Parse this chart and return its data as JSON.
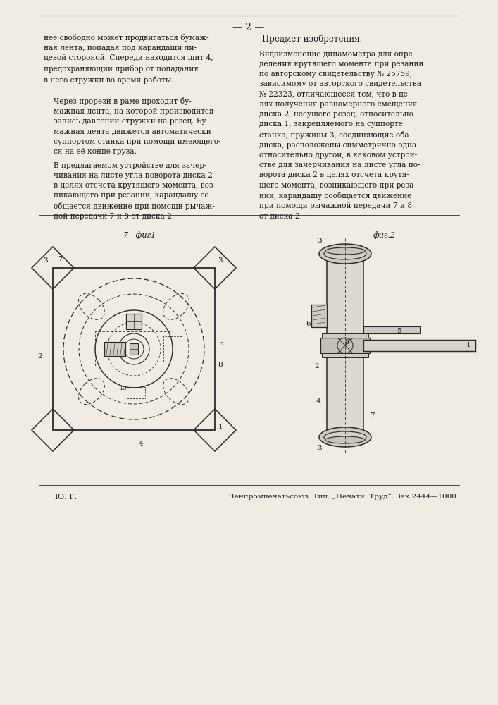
{
  "bg_color": "#f0ece4",
  "page_number": "— 2 —",
  "left_col_p1": "нее свободно может продвигаться бумаж-\nная лента, попадая под карандаши ли-\nцевой стороной. Спереди находится щит 4,\nпредохраняющий прибор от попадания\nв него стружки во время работы.",
  "left_col_p2": "Через прорези в раме проходит бу-\nмажная лента, на которой производится\nзапись давлений стружки на резец. Бу-\nмажная лента движется автоматически\nсуппортом станка при помощи имеющего-\nся на её конце груза.",
  "left_col_p3": "В предлагаемом устройстве для зачер-\nчивания на листе угла поворота диска 2\nв целях отсчета крутящего момента, воз-\nникающего при резании, карандашу со-\nобщается движение при помощи рычаж-\nной передачи 7 и 8 от диска 2.",
  "right_col_title": "Предмет изобретения.",
  "right_col_text": "Видоизменение динамометра для опре-\nделения крутящего момента при резании\nпо авторскому свидетельству № 25759,\nзависимому от авторского свидетельства\n№ 22323, отличающееся тем, что в це-\nлях получения равномерного смещения\nдиска 2, несущего резец, относительно\nдиска 1, закрепляемого на суппорте\nстанка, пружины 3, соединяющие оба\nдиска, расположены симметрично одна\nотносительно другой, в каковом устрой-\nстве для зачерчивания на листе угла по-\nворота диска 2 в целях отсчета крутя-\nщего момента, возникающего при реза-\nнии, карандашу сообщается движение\nпри помощи рычажной передачи 7 и 8\nот диска 2.",
  "footer_left": "Ю. Г.",
  "footer_right": "Ленпромпечатьсоюз. Тип. „Печати. Труд“. Зак 2444—1000",
  "fig1_label": "фиг1",
  "fig2_label": "фиг.2",
  "text_color": "#1a1a1a",
  "line_color": "#2a2a2a"
}
